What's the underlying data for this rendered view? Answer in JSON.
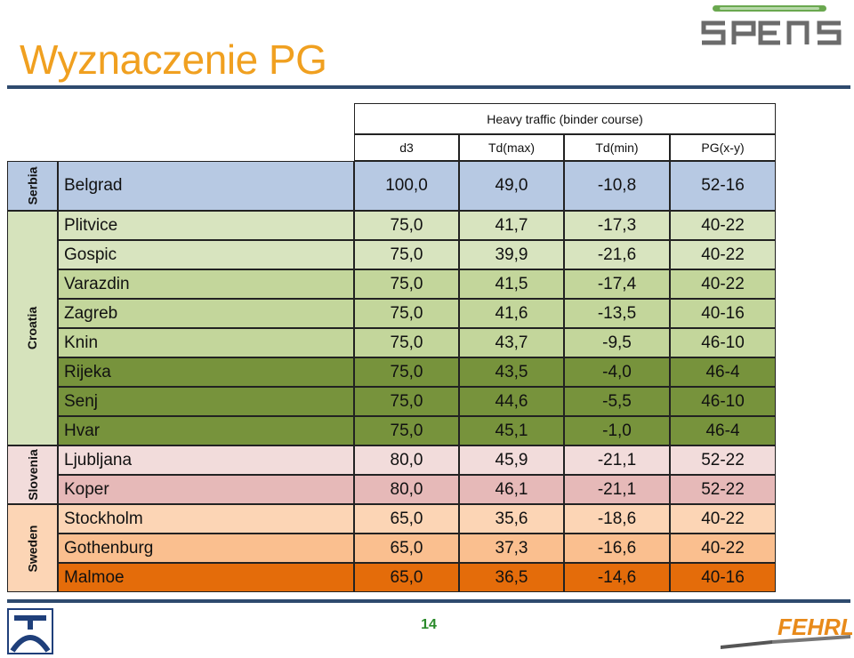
{
  "title": "Wyznaczenie PG",
  "page_number": "14",
  "logos": {
    "top_right": "SPENS",
    "bottom_right": "FEHRL"
  },
  "table": {
    "group_header": "Heavy traffic (binder course)",
    "columns": [
      "d3",
      "Td(max)",
      "Td(min)",
      "PG(x-y)"
    ],
    "groups": [
      {
        "country": "Serbia",
        "color": "#b7c9e3",
        "rows": [
          {
            "city": "Belgrad",
            "d3": "100,0",
            "tdmax": "49,0",
            "tdmin": "-10,8",
            "pg": "52-16",
            "color": "#b7c9e3"
          }
        ]
      },
      {
        "country": "Croatia",
        "color": "#d6e3bc",
        "rows": [
          {
            "city": "Plitvice",
            "d3": "75,0",
            "tdmax": "41,7",
            "tdmin": "-17,3",
            "pg": "40-22",
            "color": "#d8e4bf"
          },
          {
            "city": "Gospic",
            "d3": "75,0",
            "tdmax": "39,9",
            "tdmin": "-21,6",
            "pg": "40-22",
            "color": "#d8e4bf"
          },
          {
            "city": "Varazdin",
            "d3": "75,0",
            "tdmax": "41,5",
            "tdmin": "-17,4",
            "pg": "40-22",
            "color": "#c3d69b"
          },
          {
            "city": "Zagreb",
            "d3": "75,0",
            "tdmax": "41,6",
            "tdmin": "-13,5",
            "pg": "40-16",
            "color": "#c3d69b"
          },
          {
            "city": "Knin",
            "d3": "75,0",
            "tdmax": "43,7",
            "tdmin": "-9,5",
            "pg": "46-10",
            "color": "#c3d69b"
          },
          {
            "city": "Rijeka",
            "d3": "75,0",
            "tdmax": "43,5",
            "tdmin": "-4,0",
            "pg": "46-4",
            "color": "#77933c"
          },
          {
            "city": "Senj",
            "d3": "75,0",
            "tdmax": "44,6",
            "tdmin": "-5,5",
            "pg": "46-10",
            "color": "#77933c"
          },
          {
            "city": "Hvar",
            "d3": "75,0",
            "tdmax": "45,1",
            "tdmin": "-1,0",
            "pg": "46-4",
            "color": "#77933c"
          }
        ]
      },
      {
        "country": "Slovenia",
        "color": "#f2dcdb",
        "rows": [
          {
            "city": "Ljubljana",
            "d3": "80,0",
            "tdmax": "45,9",
            "tdmin": "-21,1",
            "pg": "52-22",
            "color": "#f2dcdb"
          },
          {
            "city": "Koper",
            "d3": "80,0",
            "tdmax": "46,1",
            "tdmin": "-21,1",
            "pg": "52-22",
            "color": "#e6b9b8"
          }
        ]
      },
      {
        "country": "Sweden",
        "color": "#fcd5b5",
        "rows": [
          {
            "city": "Stockholm",
            "d3": "65,0",
            "tdmax": "35,6",
            "tdmin": "-18,6",
            "pg": "40-22",
            "color": "#fcd5b5"
          },
          {
            "city": "Gothenburg",
            "d3": "65,0",
            "tdmax": "37,3",
            "tdmin": "-16,6",
            "pg": "40-22",
            "color": "#fabf8f"
          },
          {
            "city": "Malmoe",
            "d3": "65,0",
            "tdmax": "36,5",
            "tdmin": "-14,6",
            "pg": "40-16",
            "color": "#e46c0a"
          }
        ]
      }
    ]
  }
}
